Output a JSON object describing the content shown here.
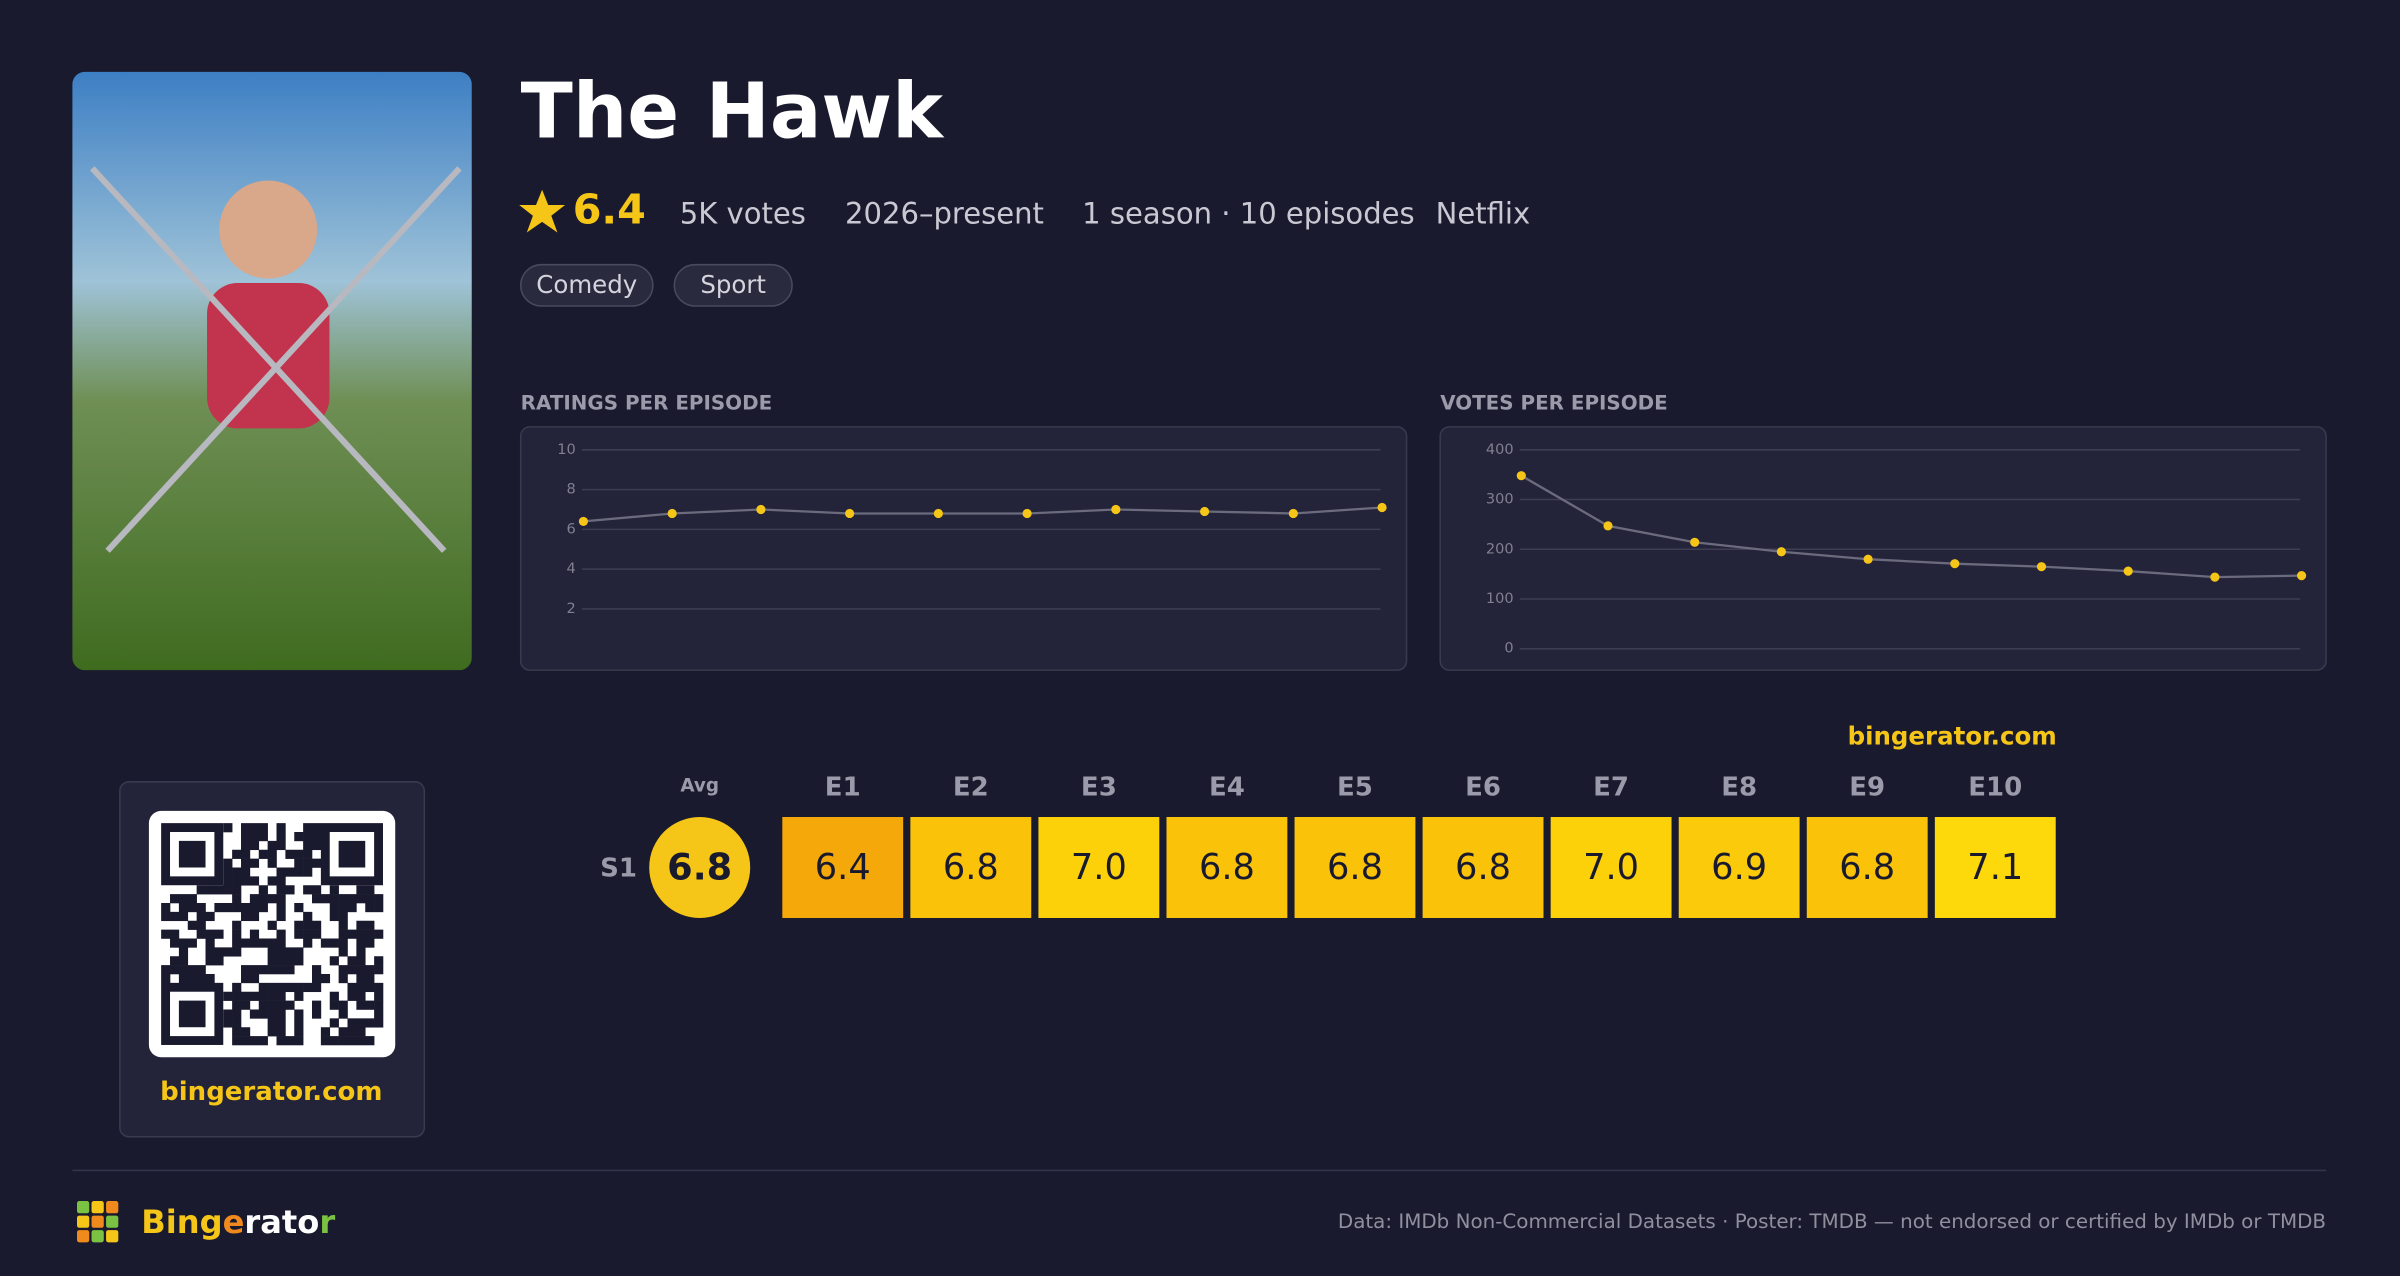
{
  "show": {
    "title": "The Hawk",
    "rating": 6.4,
    "votes": "5K votes",
    "years": "2026–present",
    "seasons": "1 season · 10 episodes",
    "network": "Netflix",
    "genres": [
      "Comedy",
      "Sport"
    ]
  },
  "chart_data": [
    {
      "type": "line",
      "title": "RATINGS PER EPISODE",
      "values": [
        6.4,
        6.8,
        7.0,
        6.8,
        6.8,
        6.8,
        7.0,
        6.9,
        6.8,
        7.1
      ],
      "color": "#f5c518",
      "line_color": "#6b6b7d",
      "ylim": [
        0,
        10
      ],
      "yticks": [
        2,
        4,
        6,
        8,
        10
      ],
      "grid": true
    },
    {
      "type": "line",
      "title": "VOTES PER EPISODE",
      "values": [
        348,
        247,
        214,
        195,
        180,
        171,
        165,
        156,
        144,
        147
      ],
      "color": "#f5c518",
      "line_color": "#6b6b7d",
      "ylim": [
        0,
        400
      ],
      "yticks": [
        0,
        100,
        200,
        300,
        400
      ],
      "grid": true
    }
  ],
  "grid": {
    "watermark": "bingerator.com",
    "avg_label": "Avg",
    "episode_labels": [
      "E1",
      "E2",
      "E3",
      "E4",
      "E5",
      "E6",
      "E7",
      "E8",
      "E9",
      "E10"
    ],
    "seasons": [
      {
        "label": "S1",
        "avg": "6.8",
        "episodes": [
          "6.4",
          "6.8",
          "7.0",
          "6.8",
          "6.8",
          "6.8",
          "7.0",
          "6.9",
          "6.8",
          "7.1"
        ]
      }
    ]
  },
  "qr": {
    "caption": "bingerator.com"
  },
  "footer": {
    "brand": "Bingerator",
    "credits": "Data: IMDb Non-Commercial Datasets · Poster: TMDB — not endorsed or certified by IMDb or TMDB"
  }
}
